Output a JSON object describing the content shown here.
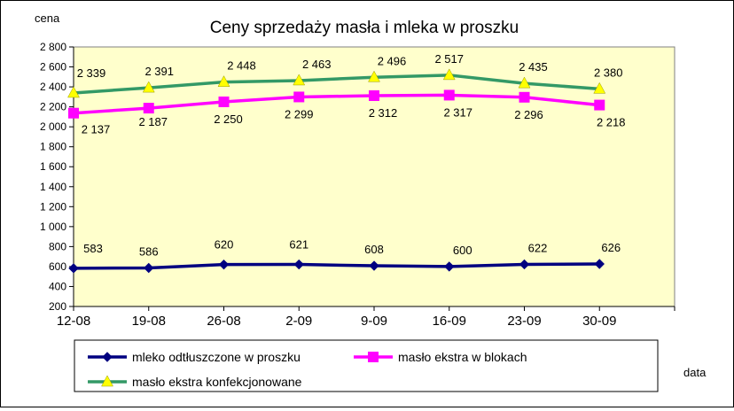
{
  "chart_data": {
    "type": "line",
    "title": "Ceny sprzedaży masła i mleka w proszku",
    "ylabel": "cena",
    "xlabel": "data",
    "categories": [
      "12-08",
      "19-08",
      "26-08",
      "2-09",
      "9-09",
      "16-09",
      "23-09",
      "30-09"
    ],
    "ylim": [
      200,
      2800
    ],
    "yticks": [
      200,
      400,
      600,
      800,
      1000,
      1200,
      1400,
      1600,
      1800,
      2000,
      2200,
      2400,
      2600,
      2800
    ],
    "ytick_labels": [
      "200",
      "400",
      "600",
      "800",
      "1 000",
      "1 200",
      "1 400",
      "1 600",
      "1 800",
      "2 000",
      "2 200",
      "2 400",
      "2 600",
      "2 800"
    ],
    "plot_background": "#ffffcc",
    "grid": false,
    "legend_position": "bottom",
    "series": [
      {
        "name": "mleko odtłuszczone w proszku",
        "values": [
          583,
          586,
          620,
          621,
          608,
          600,
          622,
          626
        ],
        "labels": [
          "583",
          "586",
          "620",
          "621",
          "608",
          "600",
          "622",
          "626"
        ],
        "color": "#000080",
        "marker": "diamond"
      },
      {
        "name": "masło ekstra w blokach",
        "values": [
          2137,
          2187,
          2250,
          2299,
          2312,
          2317,
          2296,
          2218
        ],
        "labels": [
          "2 137",
          "2 187",
          "2 250",
          "2 299",
          "2 312",
          "2 317",
          "2 296",
          "2 218"
        ],
        "color": "#ff00ff",
        "marker": "square"
      },
      {
        "name": "masło ekstra konfekcjonowane",
        "values": [
          2339,
          2391,
          2448,
          2463,
          2496,
          2517,
          2435,
          2380
        ],
        "labels": [
          "2 339",
          "2 391",
          "2 448",
          "2 463",
          "2 496",
          "2 517",
          "2 435",
          "2 380"
        ],
        "color": "#339966",
        "marker": "triangle",
        "marker_color": "#ffff00"
      }
    ]
  }
}
